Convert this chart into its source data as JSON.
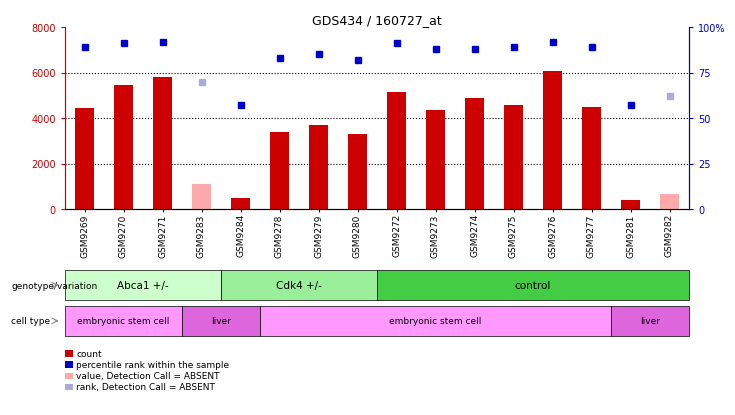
{
  "title": "GDS434 / 160727_at",
  "samples": [
    "GSM9269",
    "GSM9270",
    "GSM9271",
    "GSM9283",
    "GSM9284",
    "GSM9278",
    "GSM9279",
    "GSM9280",
    "GSM9272",
    "GSM9273",
    "GSM9274",
    "GSM9275",
    "GSM9276",
    "GSM9277",
    "GSM9281",
    "GSM9282"
  ],
  "counts": [
    4450,
    5450,
    5800,
    null,
    500,
    3400,
    3700,
    3300,
    5150,
    4350,
    4900,
    4550,
    6050,
    4500,
    400,
    null
  ],
  "absent_counts": [
    null,
    null,
    null,
    1100,
    null,
    null,
    null,
    null,
    null,
    null,
    null,
    null,
    null,
    null,
    null,
    650
  ],
  "percentile_ranks": [
    89,
    91,
    92,
    null,
    57,
    83,
    85,
    82,
    91,
    88,
    88,
    89,
    92,
    89,
    57,
    null
  ],
  "absent_ranks": [
    null,
    null,
    null,
    70,
    null,
    null,
    null,
    null,
    null,
    null,
    null,
    null,
    null,
    null,
    null,
    62
  ],
  "ylim_left": [
    0,
    8000
  ],
  "ylim_right": [
    0,
    100
  ],
  "yticks_left": [
    0,
    2000,
    4000,
    6000,
    8000
  ],
  "yticks_right": [
    0,
    25,
    50,
    75,
    100
  ],
  "ytick_labels_right": [
    "0",
    "25",
    "50",
    "75",
    "100%"
  ],
  "genotype_groups": [
    {
      "label": "Abca1 +/-",
      "start": 0,
      "end": 4,
      "color": "#ccffcc"
    },
    {
      "label": "Cdk4 +/-",
      "start": 4,
      "end": 8,
      "color": "#99ee99"
    },
    {
      "label": "control",
      "start": 8,
      "end": 16,
      "color": "#44cc44"
    }
  ],
  "cell_type_groups": [
    {
      "label": "embryonic stem cell",
      "start": 0,
      "end": 3,
      "color": "#ff99ff"
    },
    {
      "label": "liver",
      "start": 3,
      "end": 5,
      "color": "#dd66dd"
    },
    {
      "label": "embryonic stem cell",
      "start": 5,
      "end": 14,
      "color": "#ff99ff"
    },
    {
      "label": "liver",
      "start": 14,
      "end": 16,
      "color": "#dd66dd"
    }
  ],
  "bar_color": "#cc0000",
  "absent_bar_color": "#ffaaaa",
  "dot_color": "#0000cc",
  "absent_dot_color": "#aaaadd",
  "background_color": "#ffffff",
  "legend_items": [
    {
      "label": "count",
      "color": "#cc0000"
    },
    {
      "label": "percentile rank within the sample",
      "color": "#0000cc"
    },
    {
      "label": "value, Detection Call = ABSENT",
      "color": "#ffaaaa"
    },
    {
      "label": "rank, Detection Call = ABSENT",
      "color": "#aaaadd"
    }
  ],
  "genotype_label": "genotype/variation",
  "cell_type_label": "cell type",
  "left_axis_color": "#cc0000",
  "right_axis_color": "#0000cc"
}
